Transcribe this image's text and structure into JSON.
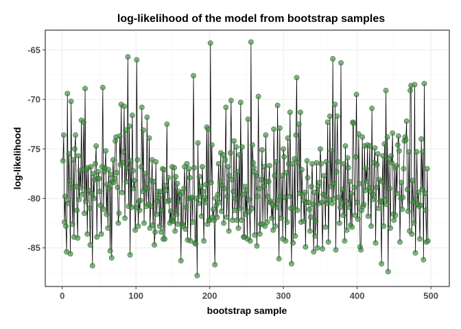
{
  "chart_data": {
    "type": "line",
    "title": "log-likelihood of the model from bootstrap samples",
    "xlabel": "bootstrap sample",
    "ylabel": "log-likelihood",
    "xlim": [
      -23,
      525
    ],
    "ylim": [
      -88.9,
      -63.0
    ],
    "x_ticks": [
      0,
      100,
      200,
      300,
      400,
      500
    ],
    "x_tick_labels": [
      "0",
      "100",
      "200",
      "300",
      "400",
      "500"
    ],
    "y_ticks": [
      -85,
      -80,
      -75,
      -70,
      -65
    ],
    "y_tick_labels": [
      "-85",
      "-80",
      "-75",
      "-70",
      "-65"
    ],
    "grid": true,
    "legend": "none",
    "line_color": "#000000",
    "point_fill": "#3f8f3f",
    "point_stroke": "#2b5e2b",
    "series": [
      {
        "x_start": 1,
        "x_step": 1,
        "values": [
          -76.2,
          -73.6,
          -82.4,
          -79.8,
          -82.8,
          -85.4,
          -69.4,
          -80.5,
          -75.5,
          -78.2,
          -85.6,
          -70.2,
          -78.9,
          -82.6,
          -76.1,
          -83.9,
          -75.0,
          -73.6,
          -78.8,
          -81.2,
          -84.0,
          -75.7,
          -80.1,
          -77.2,
          -78.9,
          -72.1,
          -79.6,
          -77.1,
          -72.3,
          -81.5,
          -68.9,
          -80.3,
          -77.1,
          -83.6,
          -76.9,
          -79.2,
          -81.0,
          -84.7,
          -76.8,
          -79.5,
          -86.8,
          -77.5,
          -80.0,
          -78.1,
          -76.5,
          -74.7,
          -83.9,
          -78.0,
          -77.3,
          -78.0,
          -79.3,
          -80.7,
          -83.6,
          -76.8,
          -68.8,
          -81.1,
          -77.3,
          -76.9,
          -75.2,
          -81.6,
          -78.6,
          -83.0,
          -77.1,
          -79.0,
          -85.3,
          -77.6,
          -86.0,
          -78.3,
          -76.1,
          -78.4,
          -78.0,
          -74.2,
          -73.8,
          -77.4,
          -78.9,
          -82.5,
          -81.5,
          -73.7,
          -76.6,
          -70.5,
          -79.4,
          -76.4,
          -75.3,
          -70.7,
          -82.0,
          -73.1,
          -78.3,
          -76.9,
          -65.7,
          -80.8,
          -72.7,
          -85.7,
          -76.2,
          -80.9,
          -71.6,
          -77.2,
          -79.0,
          -78.2,
          -83.2,
          -80.9,
          -66.0,
          -76.1,
          -82.8,
          -80.3,
          -81.2,
          -80.2,
          -76.8,
          -70.8,
          -79.3,
          -73.1,
          -82.5,
          -77.5,
          -78.9,
          -80.8,
          -71.8,
          -79.0,
          -80.6,
          -73.9,
          -83.0,
          -80.8,
          -78.2,
          -76.1,
          -82.7,
          -78.3,
          -84.7,
          -83.4,
          -76.3,
          -81.6,
          -80.3,
          -79.3,
          -79.9,
          -82.8,
          -79.3,
          -83.4,
          -81.2,
          -77.0,
          -84.1,
          -77.1,
          -84.1,
          -79.2,
          -78.7,
          -72.5,
          -80.3,
          -77.9,
          -80.2,
          -82.5,
          -81.3,
          -82.2,
          -76.8,
          -82.3,
          -82.3,
          -76.9,
          -83.3,
          -77.8,
          -81.6,
          -78.5,
          -82.6,
          -79.3,
          -80.3,
          -79.7,
          -86.3,
          -79.4,
          -82.6,
          -82.8,
          -79.0,
          -76.8,
          -83.1,
          -80.9,
          -76.5,
          -84.2,
          -80.0,
          -77.0,
          -77.9,
          -84.3,
          -80.0,
          -79.9,
          -82.4,
          -67.6,
          -76.9,
          -84.5,
          -84.6,
          -80.0,
          -87.8,
          -74.4,
          -80.5,
          -77.8,
          -79.8,
          -78.8,
          -81.8,
          -76.8,
          -79.3,
          -84.3,
          -79.9,
          -80.4,
          -78.6,
          -72.8,
          -82.6,
          -73.0,
          -82.2,
          -82.2,
          -64.3,
          -78.4,
          -74.6,
          -81.9,
          -81.1,
          -82.2,
          -86.7,
          -80.0,
          -80.7,
          -81.9,
          -79.6,
          -76.5,
          -80.4,
          -78.3,
          -75.4,
          -81.3,
          -78.7,
          -75.6,
          -82.5,
          -79.0,
          -76.1,
          -70.8,
          -81.9,
          -79.8,
          -76.8,
          -83.3,
          -77.7,
          -75.4,
          -70.1,
          -78.1,
          -82.2,
          -79.3,
          -74.2,
          -81.2,
          -80.0,
          -74.8,
          -82.2,
          -77.3,
          -83.0,
          -75.6,
          -81.0,
          -70.3,
          -82.2,
          -74.8,
          -79.6,
          -83.9,
          -83.9,
          -78.8,
          -81.6,
          -79.2,
          -84.1,
          -72.0,
          -80.1,
          -81.3,
          -84.3,
          -64.2,
          -81.0,
          -74.6,
          -76.4,
          -76.9,
          -83.7,
          -77.4,
          -77.7,
          -84.8,
          -79.8,
          -69.7,
          -79.0,
          -83.6,
          -82.6,
          -78.1,
          -75.1,
          -82.6,
          -78.8,
          -76.8,
          -82.8,
          -73.6,
          -78.3,
          -82.4,
          -79.8,
          -78.3,
          -76.7,
          -80.4,
          -80.3,
          -82.0,
          -80.6,
          -83.2,
          -73.0,
          -77.7,
          -82.8,
          -76.3,
          -80.9,
          -70.6,
          -80.2,
          -86.1,
          -72.9,
          -79.8,
          -82.0,
          -77.7,
          -84.1,
          -75.0,
          -75.8,
          -79.9,
          -84.3,
          -77.4,
          -82.4,
          -73.9,
          -76.5,
          -79.8,
          -71.3,
          -81.0,
          -86.6,
          -76.5,
          -84.5,
          -80.9,
          -76.0,
          -83.8,
          -73.6,
          -67.8,
          -81.2,
          -76.4,
          -72.5,
          -79.5,
          -71.3,
          -82.4,
          -77.1,
          -79.6,
          -80.2,
          -82.3,
          -79.4,
          -84.9,
          -80.4,
          -76.2,
          -77.9,
          -80.4,
          -81.1,
          -83.3,
          -81.9,
          -78.8,
          -76.5,
          -80.6,
          -85.4,
          -79.4,
          -83.8,
          -82.3,
          -76.4,
          -85.0,
          -78.8,
          -80.5,
          -78.4,
          -75.0,
          -76.5,
          -80.4,
          -85.1,
          -79.6,
          -77.7,
          -79.7,
          -82.9,
          -76.3,
          -80.5,
          -72.3,
          -84.4,
          -80.1,
          -71.7,
          -78.8,
          -75.2,
          -80.5,
          -65.9,
          -80.0,
          -78.5,
          -70.5,
          -85.2,
          -77.3,
          -71.7,
          -76.3,
          -79.9,
          -82.5,
          -80.9,
          -66.3,
          -80.4,
          -79.1,
          -81.7,
          -76.5,
          -84.3,
          -74.7,
          -80.3,
          -83.2,
          -75.9,
          -76.9,
          -80.9,
          -78.3,
          -82.7,
          -79.5,
          -82.9,
          -72.3,
          -72.4,
          -78.9,
          -81.7,
          -75.8,
          -69.5,
          -80.4,
          -82.1,
          -73.5,
          -78.5,
          -84.9,
          -85.2,
          -81.2,
          -73.8,
          -80.8,
          -80.6,
          -74.7,
          -79.2,
          -77.0,
          -78.3,
          -74.6,
          -81.8,
          -78.9,
          -74.7,
          -79.3,
          -82.8,
          -70.9,
          -80.1,
          -79.6,
          -76.4,
          -74.9,
          -84.5,
          -78.9,
          -76.6,
          -75.5,
          -81.0,
          -78.1,
          -80.3,
          -80.4,
          -86.6,
          -78.3,
          -75.7,
          -82.8,
          -74.5,
          -80.1,
          -69.1,
          -80.6,
          -73.8,
          -87.4,
          -76.0,
          -79.0,
          -83.0,
          -75.7,
          -76.4,
          -73.4,
          -81.6,
          -82.2,
          -76.9,
          -81.7,
          -76.7,
          -79.5,
          -74.6,
          -73.7,
          -75.2,
          -84.4,
          -80.0,
          -78.4,
          -81.1,
          -79.9,
          -77.0,
          -74.2,
          -73.8,
          -74.1,
          -72.2,
          -79.1,
          -81.3,
          -75.3,
          -83.3,
          -69.1,
          -68.6,
          -83.6,
          -78.2,
          -80.4,
          -82.5,
          -68.5,
          -85.5,
          -80.1,
          -75.3,
          -80.6,
          -79.4,
          -80.8,
          -84.1,
          -80.7,
          -74.0,
          -79.1,
          -75.3,
          -86.2,
          -68.4,
          -79.5,
          -81.2,
          -84.4,
          -77.0,
          -84.3
        ]
      }
    ]
  }
}
